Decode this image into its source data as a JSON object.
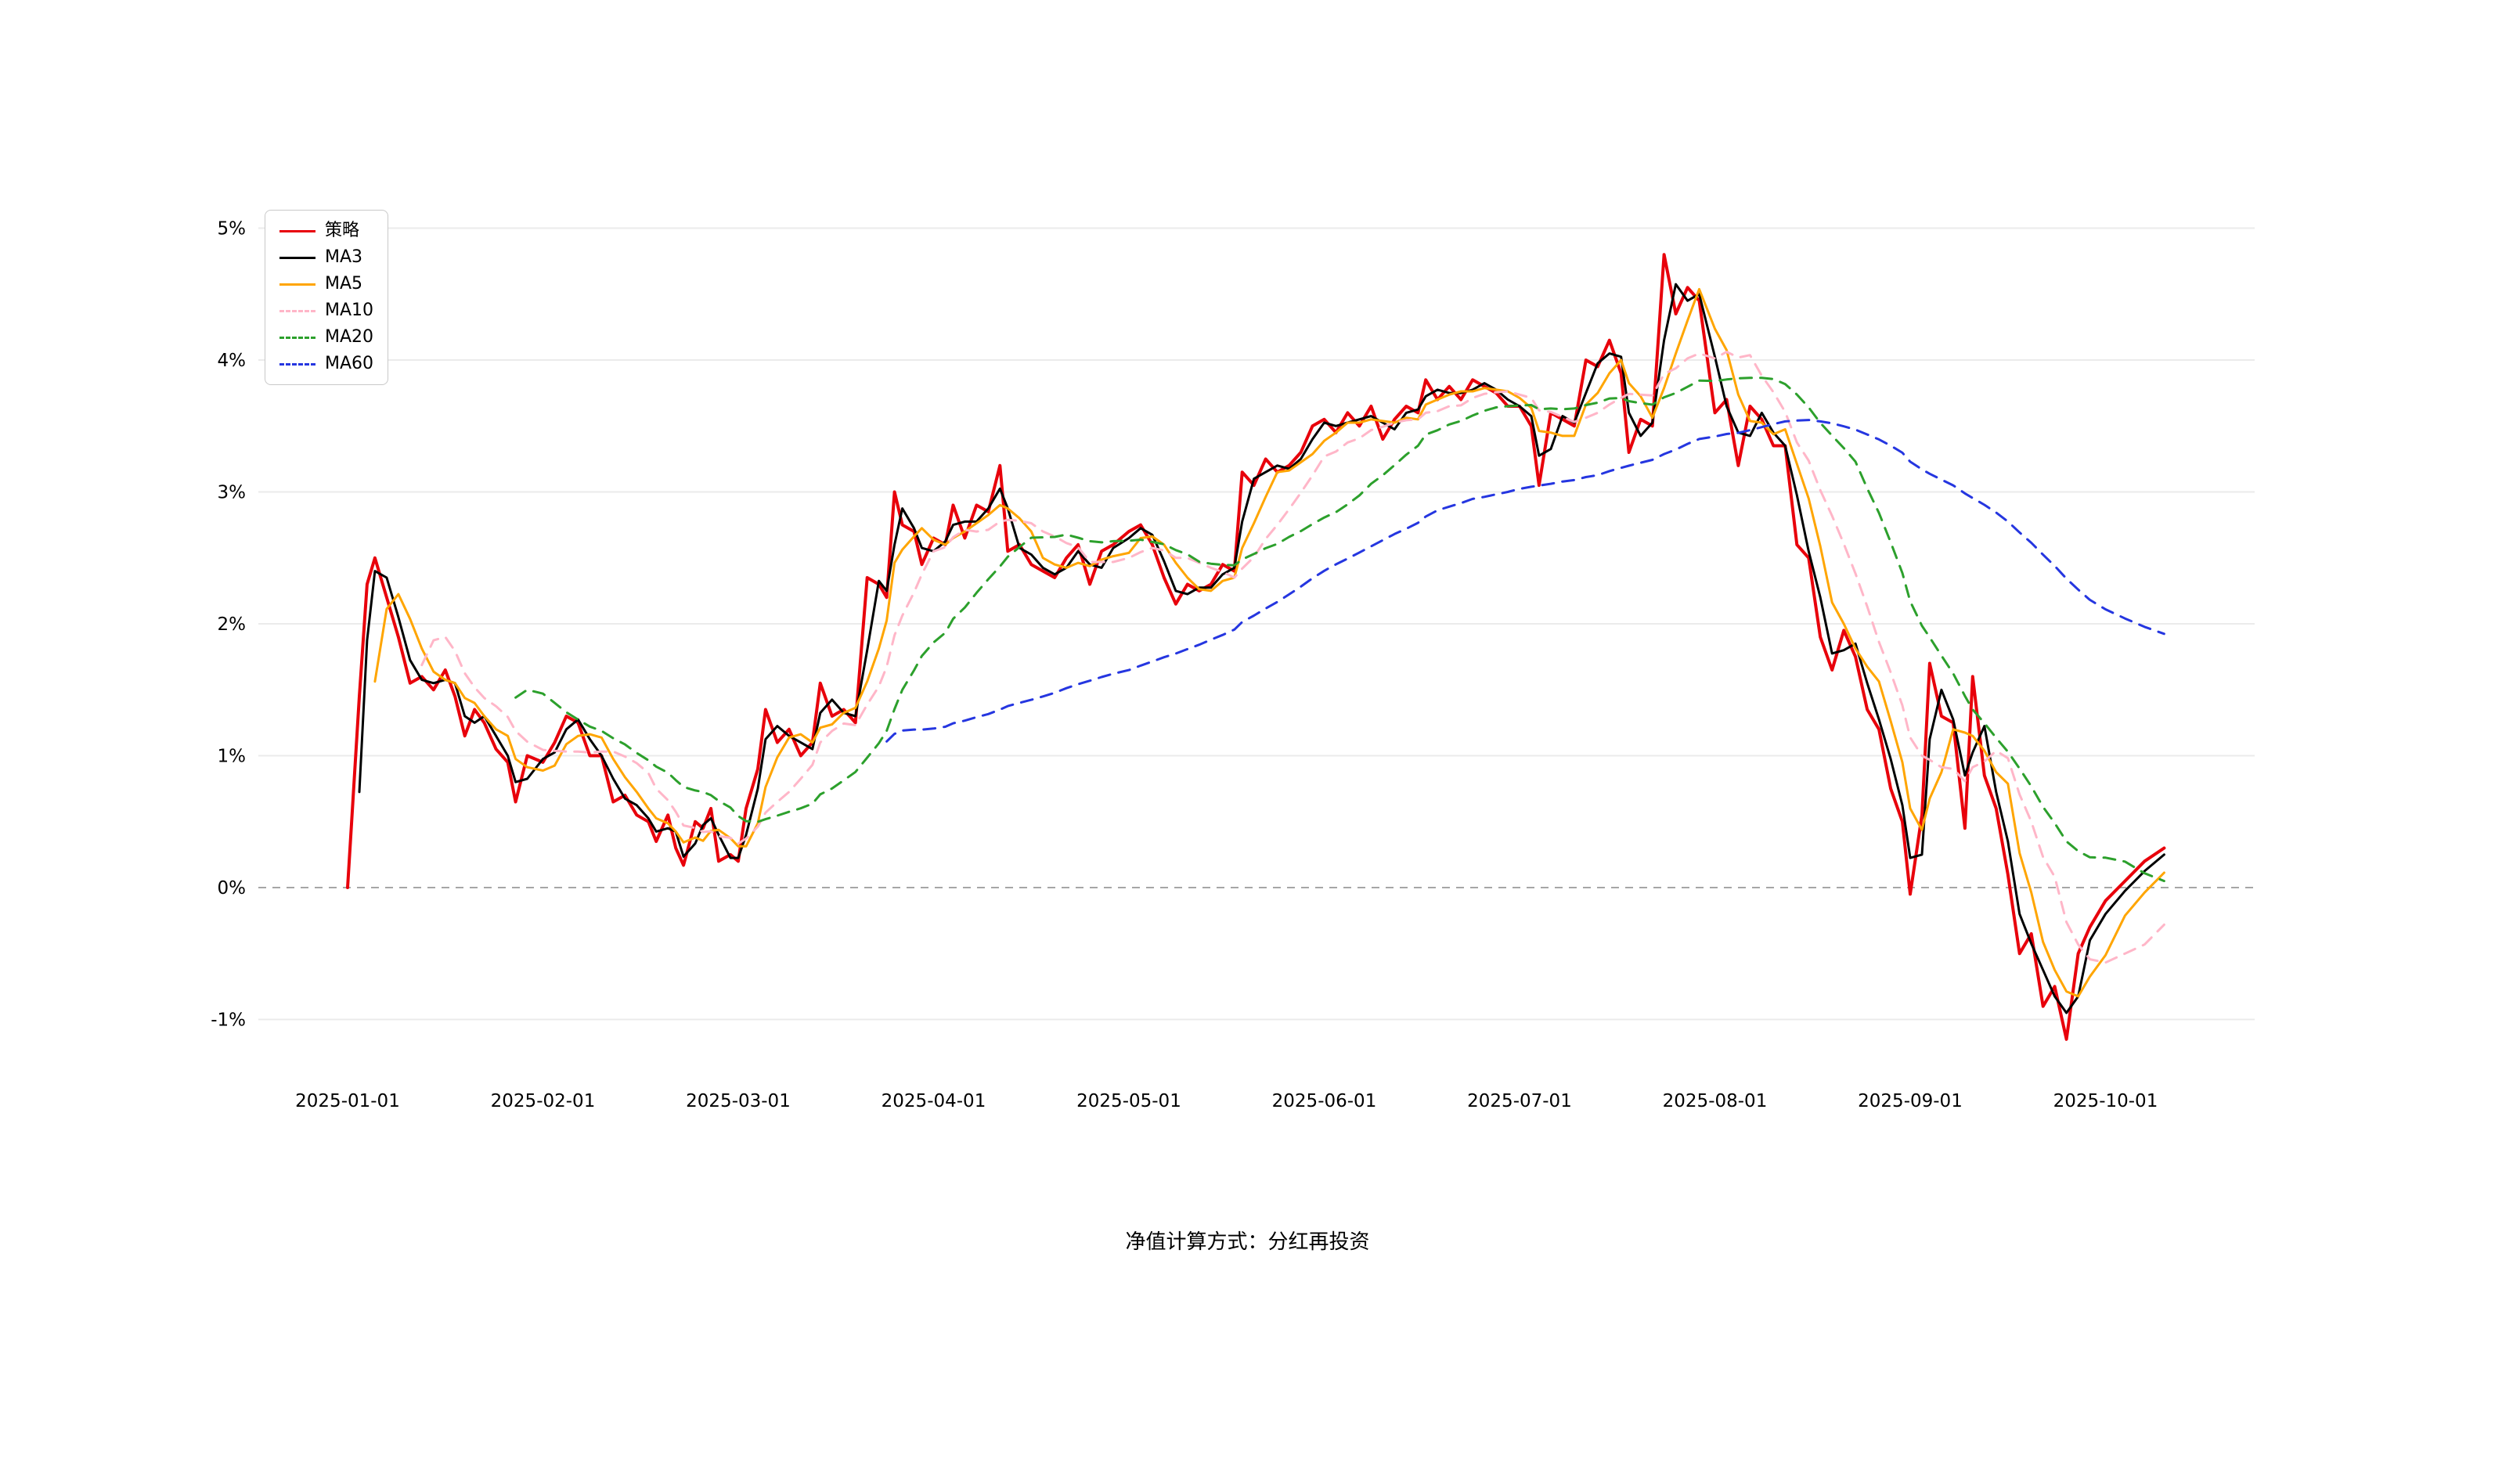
{
  "figure": {
    "caption": "净值计算方式：分红再投资",
    "background": "#ffffff"
  },
  "chart_data": {
    "type": "line",
    "title": "",
    "xlabel": "",
    "ylabel": "",
    "grid": true,
    "legend_position": "top-left",
    "x_unit": "months_since_2025-01-01",
    "xlim": [
      -0.45,
      9.75
    ],
    "ylim": [
      -1.6,
      5.3
    ],
    "zero_line": {
      "value": 0,
      "style": "dashed",
      "color": "#a6a6a6"
    },
    "gridline_color": "#ebebeb",
    "x_ticks": [
      {
        "pos": 0,
        "label": "2025-01-01"
      },
      {
        "pos": 1,
        "label": "2025-02-01"
      },
      {
        "pos": 2,
        "label": "2025-03-01"
      },
      {
        "pos": 3,
        "label": "2025-04-01"
      },
      {
        "pos": 4,
        "label": "2025-05-01"
      },
      {
        "pos": 5,
        "label": "2025-06-01"
      },
      {
        "pos": 6,
        "label": "2025-07-01"
      },
      {
        "pos": 7,
        "label": "2025-08-01"
      },
      {
        "pos": 8,
        "label": "2025-09-01"
      },
      {
        "pos": 9,
        "label": "2025-10-01"
      }
    ],
    "y_ticks": [
      {
        "value": 5,
        "label": "5%"
      },
      {
        "value": 4,
        "label": "4%"
      },
      {
        "value": 3,
        "label": "3%"
      },
      {
        "value": 2,
        "label": "2%"
      },
      {
        "value": 1,
        "label": "1%"
      },
      {
        "value": 0,
        "label": "0%"
      },
      {
        "value": -1,
        "label": "-1%"
      }
    ],
    "series": [
      {
        "key": "strategy",
        "name": "策略",
        "color": "#e8000b",
        "style": "solid",
        "width": 4,
        "x": [
          0,
          0.06,
          0.1,
          0.14,
          0.2,
          0.26,
          0.32,
          0.38,
          0.44,
          0.5,
          0.55,
          0.6,
          0.65,
          0.7,
          0.76,
          0.82,
          0.86,
          0.92,
          1,
          1.06,
          1.12,
          1.18,
          1.24,
          1.3,
          1.36,
          1.42,
          1.48,
          1.54,
          1.58,
          1.64,
          1.68,
          1.72,
          1.78,
          1.82,
          1.86,
          1.9,
          1.96,
          2,
          2.04,
          2.1,
          2.14,
          2.2,
          2.26,
          2.32,
          2.38,
          2.42,
          2.48,
          2.54,
          2.6,
          2.66,
          2.72,
          2.76,
          2.8,
          2.84,
          2.9,
          2.94,
          3,
          3.06,
          3.1,
          3.16,
          3.22,
          3.28,
          3.34,
          3.38,
          3.44,
          3.5,
          3.56,
          3.62,
          3.68,
          3.74,
          3.8,
          3.86,
          3.92,
          4,
          4.06,
          4.12,
          4.18,
          4.24,
          4.3,
          4.36,
          4.42,
          4.48,
          4.54,
          4.58,
          4.64,
          4.7,
          4.76,
          4.82,
          4.88,
          4.94,
          5,
          5.06,
          5.12,
          5.18,
          5.24,
          5.3,
          5.36,
          5.42,
          5.48,
          5.52,
          5.58,
          5.64,
          5.7,
          5.76,
          5.82,
          5.88,
          5.94,
          6,
          6.06,
          6.1,
          6.16,
          6.22,
          6.28,
          6.34,
          6.4,
          6.46,
          6.52,
          6.56,
          6.62,
          6.68,
          6.74,
          6.8,
          6.86,
          6.92,
          7,
          7.06,
          7.12,
          7.18,
          7.24,
          7.3,
          7.36,
          7.42,
          7.48,
          7.54,
          7.6,
          7.66,
          7.72,
          7.78,
          7.84,
          7.9,
          7.96,
          8,
          8.06,
          8.1,
          8.16,
          8.22,
          8.28,
          8.32,
          8.38,
          8.44,
          8.5,
          8.56,
          8.62,
          8.68,
          8.74,
          8.8,
          8.86,
          8.92,
          9,
          9.1,
          9.2,
          9.3
        ],
        "values": [
          0,
          1.45,
          2.3,
          2.5,
          2.2,
          1.9,
          1.55,
          1.6,
          1.5,
          1.65,
          1.45,
          1.15,
          1.35,
          1.25,
          1.05,
          0.95,
          0.65,
          1,
          0.95,
          1.1,
          1.3,
          1.25,
          1,
          1,
          0.65,
          0.7,
          0.55,
          0.5,
          0.35,
          0.55,
          0.3,
          0.17,
          0.5,
          0.45,
          0.6,
          0.2,
          0.25,
          0.2,
          0.6,
          0.9,
          1.35,
          1.1,
          1.2,
          1,
          1.1,
          1.55,
          1.3,
          1.35,
          1.25,
          2.35,
          2.3,
          2.2,
          3,
          2.75,
          2.7,
          2.45,
          2.65,
          2.6,
          2.9,
          2.65,
          2.9,
          2.85,
          3.2,
          2.55,
          2.6,
          2.45,
          2.4,
          2.35,
          2.5,
          2.6,
          2.3,
          2.55,
          2.6,
          2.7,
          2.75,
          2.6,
          2.35,
          2.15,
          2.3,
          2.25,
          2.3,
          2.45,
          2.4,
          3.15,
          3.05,
          3.25,
          3.15,
          3.2,
          3.3,
          3.5,
          3.55,
          3.45,
          3.6,
          3.5,
          3.65,
          3.4,
          3.55,
          3.65,
          3.6,
          3.85,
          3.7,
          3.8,
          3.7,
          3.85,
          3.8,
          3.75,
          3.65,
          3.65,
          3.5,
          3.05,
          3.6,
          3.55,
          3.5,
          4,
          3.95,
          4.15,
          3.9,
          3.3,
          3.55,
          3.5,
          4.8,
          4.35,
          4.55,
          4.45,
          3.6,
          3.7,
          3.2,
          3.65,
          3.55,
          3.35,
          3.35,
          2.6,
          2.5,
          1.9,
          1.65,
          1.95,
          1.75,
          1.35,
          1.2,
          0.75,
          0.5,
          -0.05,
          0.55,
          1.7,
          1.3,
          1.25,
          0.45,
          1.6,
          0.85,
          0.6,
          0.1,
          -0.5,
          -0.35,
          -0.9,
          -0.75,
          -1.15,
          -0.5,
          -0.3,
          -0.1,
          0.05,
          0.2,
          0.3
        ]
      },
      {
        "key": "ma3",
        "name": "MA3",
        "color": "#000000",
        "style": "solid",
        "width": 3,
        "derived_from": "strategy",
        "window_days": 3,
        "window_samples": 2
      },
      {
        "key": "ma5",
        "name": "MA5",
        "color": "#ffa500",
        "style": "solid",
        "width": 3,
        "derived_from": "strategy",
        "window_days": 5,
        "window_samples": 4
      },
      {
        "key": "ma10",
        "name": "MA10",
        "color": "#ffb6c8",
        "style": "dashed",
        "width": 3,
        "derived_from": "strategy",
        "window_days": 10,
        "window_samples": 8
      },
      {
        "key": "ma20",
        "name": "MA20",
        "color": "#2ca02c",
        "style": "dashed",
        "width": 3,
        "derived_from": "strategy",
        "window_days": 20,
        "window_samples": 17
      },
      {
        "key": "ma60",
        "name": "MA60",
        "color": "#2536e0",
        "style": "dashed",
        "width": 3,
        "derived_from": "strategy",
        "window_days": 60,
        "window_samples": 52
      }
    ]
  }
}
